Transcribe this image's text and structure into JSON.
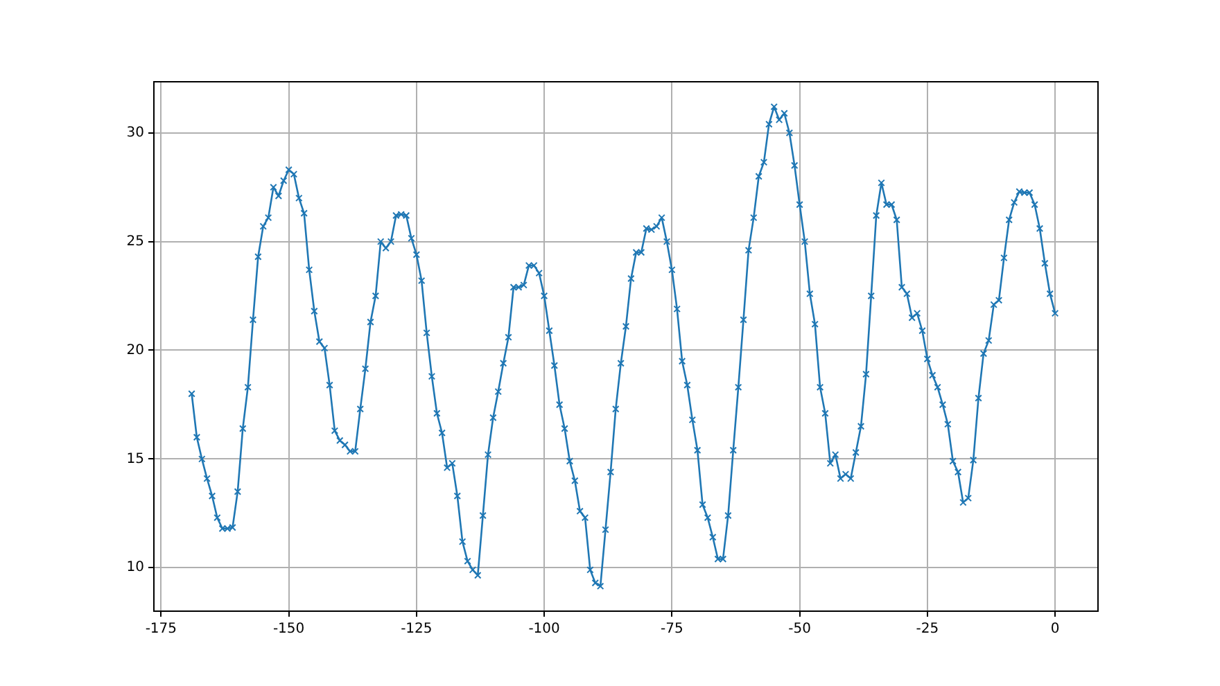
{
  "chart_data": {
    "type": "line",
    "marker": "cross",
    "line_style": "solid",
    "grid": true,
    "xlim": [
      -176.4,
      8.4
    ],
    "xticks": [
      -175,
      -150,
      -125,
      -100,
      -75,
      -50,
      -25,
      0
    ],
    "ylim": [
      8.0,
      32.35
    ],
    "yticks": [
      10,
      15,
      20,
      25,
      30
    ],
    "x": [
      -169,
      -168,
      -167,
      -166,
      -165,
      -164,
      -163,
      -162,
      -161,
      -160,
      -159,
      -158,
      -157,
      -156,
      -155,
      -154,
      -153,
      -152,
      -151,
      -150,
      -149,
      -148,
      -147,
      -146,
      -145,
      -144,
      -143,
      -142,
      -141,
      -140,
      -139,
      -138,
      -137,
      -136,
      -135,
      -134,
      -133,
      -132,
      -131,
      -130,
      -129,
      -128,
      -127,
      -126,
      -125,
      -124,
      -123,
      -122,
      -121,
      -120,
      -119,
      -118,
      -117,
      -116,
      -115,
      -114,
      -113,
      -112,
      -111,
      -110,
      -109,
      -108,
      -107,
      -106,
      -105,
      -104,
      -103,
      -102,
      -101,
      -100,
      -99,
      -98,
      -97,
      -96,
      -95,
      -94,
      -93,
      -92,
      -91,
      -90,
      -89,
      -88,
      -87,
      -86,
      -85,
      -84,
      -83,
      -82,
      -81,
      -80,
      -79,
      -78,
      -77,
      -76,
      -75,
      -74,
      -73,
      -72,
      -71,
      -70,
      -69,
      -68,
      -67,
      -66,
      -65,
      -64,
      -63,
      -62,
      -61,
      -60,
      -59,
      -58,
      -57,
      -56,
      -55,
      -54,
      -53,
      -52,
      -51,
      -50,
      -49,
      -48,
      -47,
      -46,
      -45,
      -44,
      -43,
      -42,
      -41,
      -40,
      -39,
      -38,
      -37,
      -36,
      -35,
      -34,
      -33,
      -32,
      -31,
      -30,
      -29,
      -28,
      -27,
      -26,
      -25,
      -24,
      -23,
      -22,
      -21,
      -20,
      -19,
      -18,
      -17,
      -16,
      -15,
      -14,
      -13,
      -12,
      -11,
      -10,
      -9,
      -8,
      -7,
      -6,
      -5,
      -4,
      -3,
      -2,
      -1,
      0
    ],
    "series": [
      {
        "color": "#1f77b4",
        "values": [
          18.0,
          16.0,
          15.0,
          14.1,
          13.3,
          12.3,
          11.8,
          11.8,
          11.85,
          13.5,
          16.4,
          18.3,
          21.4,
          24.3,
          25.7,
          26.1,
          27.5,
          27.1,
          27.8,
          28.3,
          28.1,
          27.0,
          26.3,
          23.7,
          21.8,
          20.4,
          20.1,
          18.4,
          16.3,
          15.85,
          15.65,
          15.35,
          15.35,
          17.3,
          19.15,
          21.3,
          22.5,
          25.0,
          24.7,
          25.0,
          26.2,
          26.25,
          26.2,
          25.15,
          24.4,
          23.2,
          20.8,
          18.8,
          17.1,
          16.2,
          14.6,
          14.8,
          13.3,
          11.2,
          10.3,
          9.9,
          9.65,
          12.4,
          15.2,
          16.9,
          18.1,
          19.4,
          20.6,
          22.9,
          22.9,
          23.0,
          23.9,
          23.9,
          23.55,
          22.5,
          20.9,
          19.3,
          17.5,
          16.4,
          14.9,
          14.0,
          12.6,
          12.3,
          9.9,
          9.3,
          9.15,
          11.75,
          14.4,
          17.3,
          19.4,
          21.1,
          23.3,
          24.5,
          24.5,
          25.6,
          25.55,
          25.7,
          26.1,
          25.0,
          23.7,
          21.9,
          19.5,
          18.4,
          16.8,
          15.4,
          12.9,
          12.3,
          11.4,
          10.4,
          10.4,
          12.4,
          15.4,
          18.3,
          21.4,
          24.6,
          26.1,
          28.0,
          28.65,
          30.4,
          31.2,
          30.6,
          30.9,
          30.0,
          28.5,
          26.7,
          25.0,
          22.6,
          21.2,
          18.3,
          17.1,
          14.8,
          15.2,
          14.1,
          14.3,
          14.1,
          15.3,
          16.5,
          18.9,
          22.5,
          26.2,
          27.7,
          26.7,
          26.7,
          26.0,
          22.9,
          22.6,
          21.5,
          21.7,
          20.9,
          19.6,
          18.85,
          18.3,
          17.5,
          16.6,
          14.9,
          14.4,
          13.0,
          13.2,
          14.95,
          17.8,
          19.85,
          20.45,
          22.1,
          22.3,
          24.25,
          26.0,
          26.8,
          27.3,
          27.25,
          27.25,
          26.7,
          25.6,
          24.0,
          22.6,
          21.7
        ]
      }
    ]
  }
}
